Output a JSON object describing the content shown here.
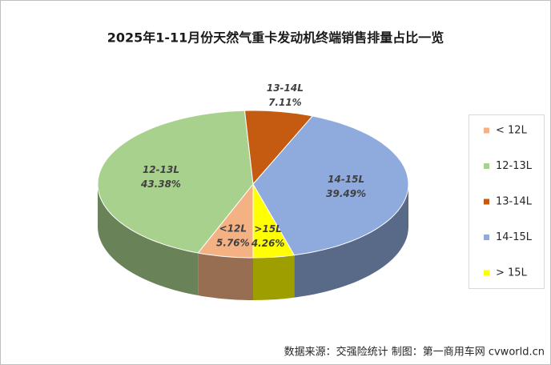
{
  "chart_data": {
    "type": "pie3d",
    "title": "2025年1-11月份天然气重卡发动机终端销售排量占比一览",
    "categories": [
      "< 12L",
      "12-13L",
      "13-14L",
      "14-15L",
      "> 15L"
    ],
    "slice_labels": [
      "<12L",
      "12-13L",
      "13-14L",
      "14-15L",
      ">15L"
    ],
    "values": [
      5.76,
      43.38,
      7.11,
      39.49,
      4.26
    ],
    "value_labels": [
      "5.76%",
      "43.38%",
      "7.11%",
      "39.49%",
      "4.26%"
    ],
    "colors": [
      "#f4b183",
      "#a9d18e",
      "#c55a11",
      "#8faadc",
      "#ffff00"
    ],
    "legend": "right",
    "source": "数据来源：交强险统计  制图：第一商用车网 cvworld.cn"
  }
}
